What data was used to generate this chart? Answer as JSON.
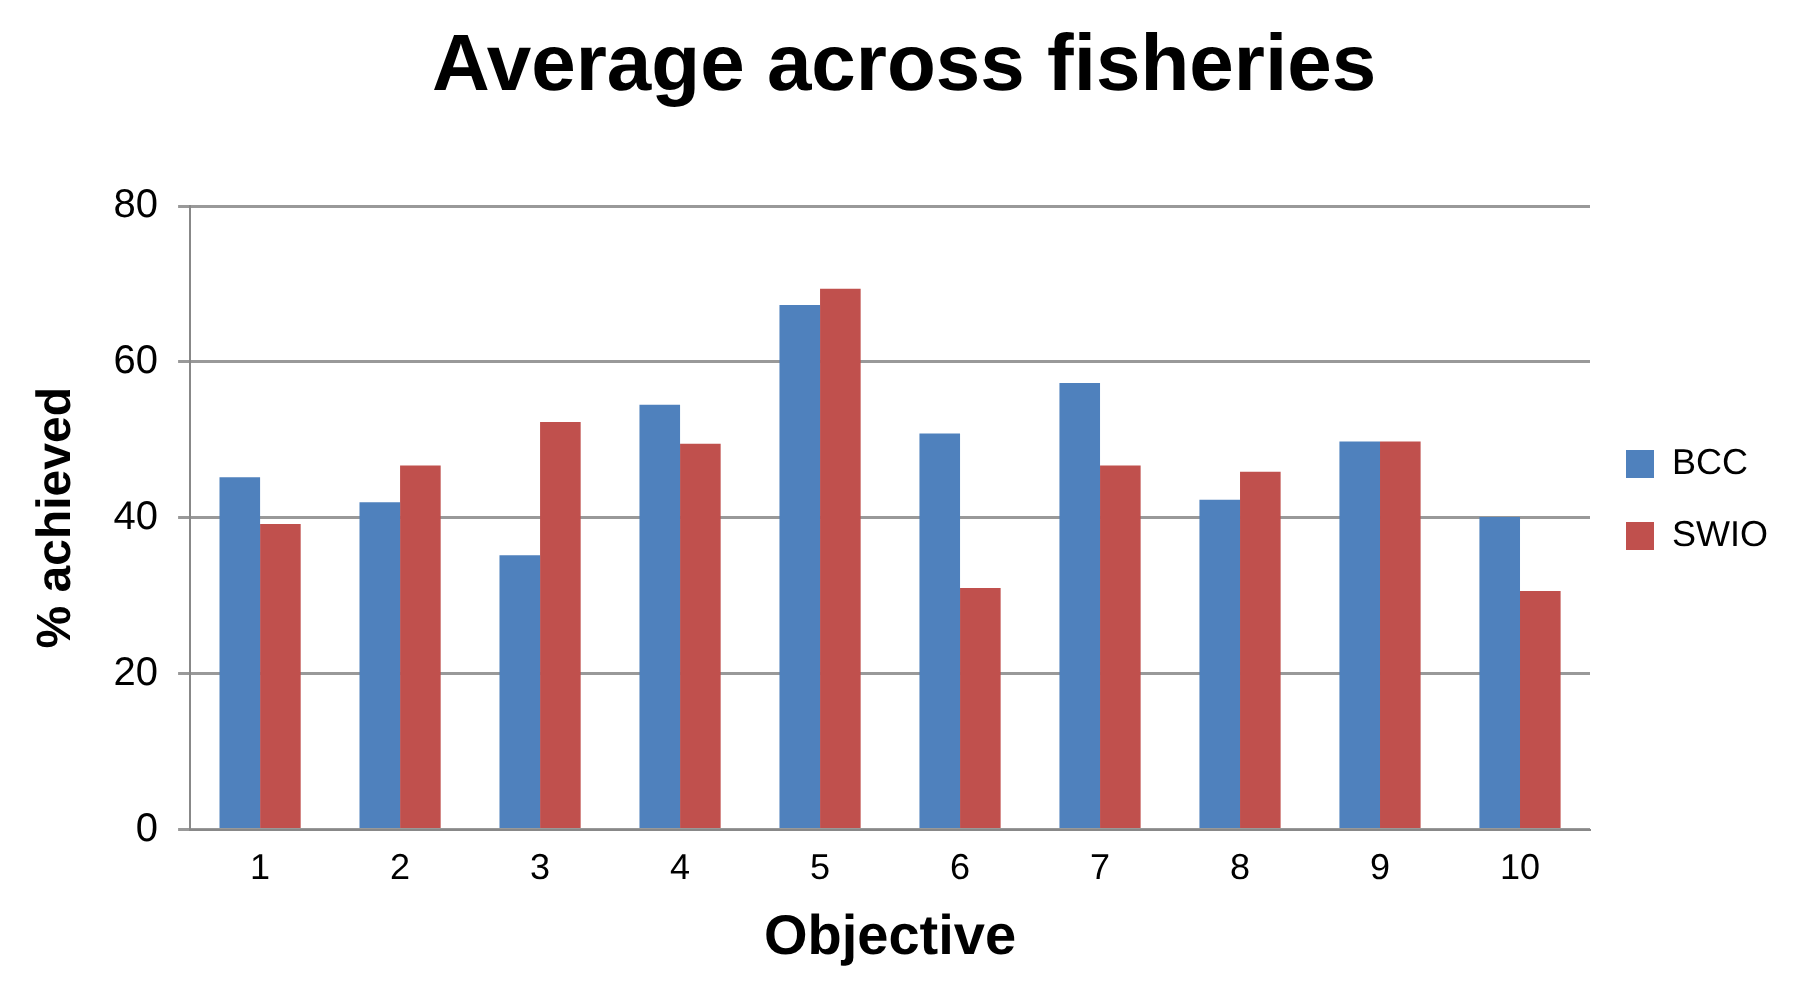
{
  "chart_data": {
    "type": "bar",
    "title": "Average across fisheries",
    "xlabel": "Objective",
    "ylabel": "% achieved",
    "categories": [
      "1",
      "2",
      "3",
      "4",
      "5",
      "6",
      "7",
      "8",
      "9",
      "10"
    ],
    "series": [
      {
        "name": "BCC",
        "color": "#4f81bd",
        "values": [
          45.2,
          42.0,
          35.2,
          54.5,
          67.3,
          50.8,
          57.3,
          42.3,
          49.8,
          40.1
        ]
      },
      {
        "name": "SWIO",
        "color": "#c0504d",
        "values": [
          39.2,
          46.7,
          52.3,
          49.5,
          69.4,
          31.0,
          46.7,
          45.9,
          49.8,
          30.6
        ]
      }
    ],
    "ylim": [
      0,
      80
    ],
    "yticks": [
      0,
      20,
      40,
      60,
      80
    ],
    "grid": "y",
    "legend": "right"
  }
}
